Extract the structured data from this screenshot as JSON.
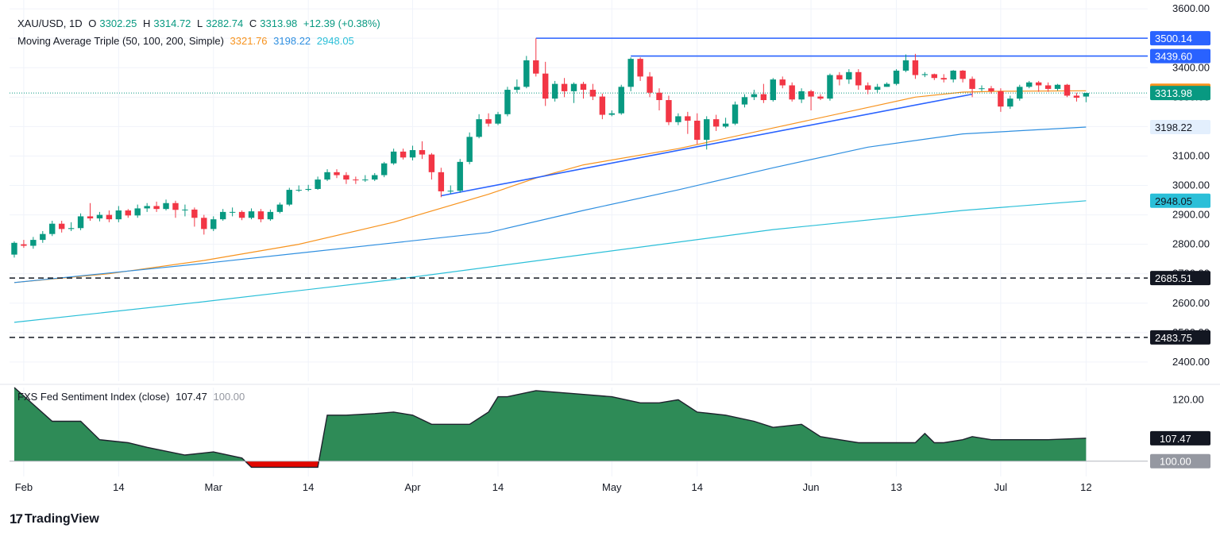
{
  "header": {
    "symbol": "XAU/USD, 1D",
    "open_label": "O",
    "open": "3302.25",
    "high_label": "H",
    "high": "3314.72",
    "low_label": "L",
    "low": "3282.74",
    "close_label": "C",
    "close": "3313.98",
    "change": "+12.39 (+0.38%)"
  },
  "ma_legend": {
    "name": "Moving Average Triple (50, 100, 200, Simple)",
    "ma50": "3321.76",
    "ma100": "3198.22",
    "ma200": "2948.05"
  },
  "indicator_legend": {
    "name": "FXS Fed Sentiment Index (close)",
    "value": "107.47",
    "baseline": "100.00"
  },
  "branding": {
    "logo_text": "TradingView"
  },
  "colors": {
    "up": "#089981",
    "down": "#f23645",
    "ma50": "#f7931e",
    "ma100": "#2f8fe0",
    "ma200": "#2bbfd8",
    "trendline": "#2962ff",
    "area_fill": "#2e8b57",
    "area_neg": "#e10600"
  },
  "chart_data": [
    {
      "type": "candlestick",
      "title": "XAU/USD, 1D",
      "ylim": [
        2335,
        3630
      ],
      "yticks": [
        3600,
        3500,
        3400,
        3300,
        3200,
        3100,
        3000,
        2900,
        2800,
        2700,
        2600,
        2500,
        2400
      ],
      "ytick_labels": [
        "3600.00",
        "3500.00",
        "3400.00",
        "3300.00",
        "3200.00",
        "3100.00",
        "3000.00",
        "2900.00",
        "2800.00",
        "2700.00",
        "2600.00",
        "2500.00",
        "2400.00"
      ],
      "xticks": [
        {
          "i": 1,
          "label": "Feb"
        },
        {
          "i": 11,
          "label": "14"
        },
        {
          "i": 21,
          "label": "Mar"
        },
        {
          "i": 31,
          "label": "14"
        },
        {
          "i": 42,
          "label": "Apr"
        },
        {
          "i": 51,
          "label": "14"
        },
        {
          "i": 63,
          "label": "May"
        },
        {
          "i": 72,
          "label": "14"
        },
        {
          "i": 84,
          "label": "Jun"
        },
        {
          "i": 93,
          "label": "13"
        },
        {
          "i": 104,
          "label": "Jul"
        },
        {
          "i": 113,
          "label": "12"
        }
      ],
      "slots": 120,
      "candles": [
        [
          2765,
          2805,
          2755,
          2810
        ],
        [
          2800,
          2795,
          2788,
          2815
        ],
        [
          2795,
          2815,
          2785,
          2825
        ],
        [
          2815,
          2835,
          2805,
          2845
        ],
        [
          2835,
          2870,
          2828,
          2880
        ],
        [
          2870,
          2852,
          2840,
          2880
        ],
        [
          2852,
          2855,
          2845,
          2875
        ],
        [
          2855,
          2895,
          2848,
          2905
        ],
        [
          2895,
          2888,
          2880,
          2940
        ],
        [
          2888,
          2900,
          2878,
          2910
        ],
        [
          2900,
          2885,
          2875,
          2915
        ],
        [
          2885,
          2915,
          2875,
          2930
        ],
        [
          2915,
          2898,
          2890,
          2920
        ],
        [
          2898,
          2922,
          2890,
          2935
        ],
        [
          2922,
          2930,
          2910,
          2940
        ],
        [
          2930,
          2920,
          2910,
          2945
        ],
        [
          2920,
          2940,
          2915,
          2952
        ],
        [
          2940,
          2917,
          2890,
          2948
        ],
        [
          2917,
          2918,
          2895,
          2935
        ],
        [
          2918,
          2890,
          2860,
          2925
        ],
        [
          2890,
          2852,
          2833,
          2900
        ],
        [
          2852,
          2885,
          2845,
          2895
        ],
        [
          2885,
          2910,
          2880,
          2920
        ],
        [
          2910,
          2910,
          2895,
          2925
        ],
        [
          2910,
          2890,
          2882,
          2915
        ],
        [
          2890,
          2912,
          2885,
          2922
        ],
        [
          2912,
          2885,
          2875,
          2920
        ],
        [
          2885,
          2910,
          2880,
          2918
        ],
        [
          2910,
          2935,
          2905,
          2942
        ],
        [
          2935,
          2985,
          2930,
          2992
        ],
        [
          2985,
          2985,
          2978,
          3000
        ],
        [
          2985,
          2988,
          2980,
          3002
        ],
        [
          2988,
          3020,
          2985,
          3030
        ],
        [
          3020,
          3045,
          3015,
          3055
        ],
        [
          3045,
          3035,
          3025,
          3055
        ],
        [
          3035,
          3020,
          3005,
          3045
        ],
        [
          3020,
          3018,
          3005,
          3030
        ],
        [
          3018,
          3020,
          3012,
          3035
        ],
        [
          3020,
          3035,
          3015,
          3042
        ],
        [
          3035,
          3075,
          3028,
          3080
        ],
        [
          3075,
          3115,
          3070,
          3125
        ],
        [
          3115,
          3095,
          3088,
          3125
        ],
        [
          3095,
          3120,
          3085,
          3135
        ],
        [
          3120,
          3105,
          3090,
          3150
        ],
        [
          3105,
          3045,
          3020,
          3110
        ],
        [
          3045,
          2980,
          2960,
          3060
        ],
        [
          2980,
          2982,
          2972,
          3000
        ],
        [
          2982,
          3080,
          2975,
          3090
        ],
        [
          3080,
          3165,
          3072,
          3180
        ],
        [
          3165,
          3225,
          3160,
          3242
        ],
        [
          3225,
          3210,
          3200,
          3245
        ],
        [
          3210,
          3242,
          3205,
          3250
        ],
        [
          3242,
          3325,
          3235,
          3335
        ],
        [
          3325,
          3335,
          3315,
          3360
        ],
        [
          3335,
          3425,
          3330,
          3440
        ],
        [
          3425,
          3380,
          3370,
          3500
        ],
        [
          3380,
          3295,
          3270,
          3420
        ],
        [
          3295,
          3345,
          3285,
          3355
        ],
        [
          3345,
          3320,
          3300,
          3365
        ],
        [
          3320,
          3345,
          3280,
          3350
        ],
        [
          3345,
          3325,
          3295,
          3352
        ],
        [
          3325,
          3302,
          3290,
          3345
        ],
        [
          3302,
          3240,
          3225,
          3312
        ],
        [
          3240,
          3245,
          3235,
          3255
        ],
        [
          3245,
          3335,
          3240,
          3342
        ],
        [
          3335,
          3430,
          3320,
          3435
        ],
        [
          3430,
          3370,
          3355,
          3435
        ],
        [
          3370,
          3315,
          3300,
          3385
        ],
        [
          3315,
          3290,
          3255,
          3330
        ],
        [
          3290,
          3215,
          3205,
          3305
        ],
        [
          3215,
          3235,
          3205,
          3245
        ],
        [
          3235,
          3220,
          3175,
          3250
        ],
        [
          3220,
          3155,
          3140,
          3245
        ],
        [
          3155,
          3225,
          3122,
          3235
        ],
        [
          3225,
          3200,
          3185,
          3240
        ],
        [
          3200,
          3210,
          3195,
          3230
        ],
        [
          3210,
          3275,
          3205,
          3285
        ],
        [
          3275,
          3300,
          3265,
          3310
        ],
        [
          3300,
          3310,
          3290,
          3325
        ],
        [
          3310,
          3290,
          3280,
          3345
        ],
        [
          3290,
          3360,
          3285,
          3365
        ],
        [
          3360,
          3340,
          3330,
          3370
        ],
        [
          3340,
          3292,
          3285,
          3350
        ],
        [
          3292,
          3320,
          3280,
          3330
        ],
        [
          3320,
          3302,
          3255,
          3325
        ],
        [
          3302,
          3295,
          3290,
          3310
        ],
        [
          3295,
          3375,
          3288,
          3380
        ],
        [
          3375,
          3360,
          3340,
          3385
        ],
        [
          3360,
          3385,
          3345,
          3395
        ],
        [
          3385,
          3340,
          3325,
          3395
        ],
        [
          3340,
          3325,
          3310,
          3350
        ],
        [
          3325,
          3335,
          3315,
          3345
        ],
        [
          3335,
          3345,
          3335,
          3350
        ],
        [
          3345,
          3390,
          3340,
          3395
        ],
        [
          3390,
          3425,
          3385,
          3445
        ],
        [
          3425,
          3375,
          3362,
          3447
        ],
        [
          3375,
          3378,
          3368,
          3385
        ],
        [
          3378,
          3365,
          3358,
          3380
        ],
        [
          3365,
          3360,
          3350,
          3378
        ],
        [
          3360,
          3390,
          3350,
          3392
        ],
        [
          3390,
          3362,
          3350,
          3392
        ],
        [
          3362,
          3328,
          3300,
          3370
        ],
        [
          3328,
          3330,
          3320,
          3340
        ],
        [
          3330,
          3320,
          3312,
          3338
        ],
        [
          3320,
          3268,
          3250,
          3330
        ],
        [
          3268,
          3295,
          3260,
          3305
        ],
        [
          3295,
          3335,
          3288,
          3342
        ],
        [
          3335,
          3350,
          3330,
          3355
        ],
        [
          3350,
          3340,
          3318,
          3355
        ],
        [
          3340,
          3328,
          3318,
          3350
        ],
        [
          3328,
          3342,
          3322,
          3345
        ],
        [
          3342,
          3305,
          3300,
          3345
        ],
        [
          3305,
          3298,
          3285,
          3315
        ],
        [
          3302,
          3313.98,
          3282.74,
          3314.72
        ]
      ],
      "series": [
        {
          "name": "50",
          "label": "3321.76",
          "y_at": [
            [
              0,
              2670
            ],
            [
              10,
              2700
            ],
            [
              20,
              2745
            ],
            [
              30,
              2800
            ],
            [
              40,
              2875
            ],
            [
              50,
              2970
            ],
            [
              55,
              3025
            ],
            [
              60,
              3070
            ],
            [
              70,
              3125
            ],
            [
              80,
              3195
            ],
            [
              90,
              3265
            ],
            [
              95,
              3300
            ],
            [
              100,
              3317
            ],
            [
              104,
              3320
            ],
            [
              113,
              3321.76
            ]
          ]
        },
        {
          "name": "100",
          "label": "3198.22",
          "y_at": [
            [
              0,
              2670
            ],
            [
              20,
              2735
            ],
            [
              40,
              2805
            ],
            [
              50,
              2840
            ],
            [
              60,
              2915
            ],
            [
              70,
              2985
            ],
            [
              80,
              3060
            ],
            [
              90,
              3130
            ],
            [
              100,
              3175
            ],
            [
              113,
              3198.22
            ]
          ]
        },
        {
          "name": "200",
          "label": "2948.05",
          "y_at": [
            [
              0,
              2535
            ],
            [
              20,
              2605
            ],
            [
              40,
              2680
            ],
            [
              60,
              2765
            ],
            [
              80,
              2850
            ],
            [
              100,
              2915
            ],
            [
              113,
              2948.05
            ]
          ]
        }
      ],
      "horizontal_lines": [
        {
          "value": 3500.14,
          "label": "3500.14",
          "from_i": 55,
          "style": "solid"
        },
        {
          "value": 3439.6,
          "label": "3439.60",
          "from_i": 65,
          "style": "solid"
        },
        {
          "value": 2685.51,
          "label": "2685.51",
          "from_i": 0,
          "style": "dashed"
        },
        {
          "value": 2483.75,
          "label": "2483.75",
          "from_i": 0,
          "style": "dashed"
        }
      ],
      "trendline": {
        "from": [
          45,
          2965
        ],
        "to": [
          101,
          3310
        ]
      },
      "price_line": {
        "value": 3313.98,
        "label": "3313.98"
      },
      "hidden_labels": [
        "3400.00",
        "2400.00"
      ]
    },
    {
      "type": "area",
      "title": "FXS Fed Sentiment Index (close)",
      "ylim": [
        95,
        124
      ],
      "yticks": [
        120
      ],
      "ytick_labels": [
        "120.00"
      ],
      "baseline": 100,
      "baseline_label": "100.00",
      "last_label": "107.47",
      "points": [
        [
          0,
          125
        ],
        [
          4,
          113
        ],
        [
          7,
          113
        ],
        [
          9,
          107
        ],
        [
          12,
          106
        ],
        [
          14,
          104.5
        ],
        [
          18,
          102
        ],
        [
          21,
          103
        ],
        [
          24,
          101
        ],
        [
          25,
          98
        ],
        [
          30,
          98
        ],
        [
          32,
          98
        ],
        [
          33,
          115
        ],
        [
          35,
          115
        ],
        [
          38,
          115.5
        ],
        [
          40,
          116
        ],
        [
          42,
          115
        ],
        [
          44,
          112
        ],
        [
          46,
          112
        ],
        [
          48,
          112
        ],
        [
          50,
          116
        ],
        [
          51,
          121
        ],
        [
          52,
          121
        ],
        [
          55,
          123
        ],
        [
          59,
          122
        ],
        [
          63,
          121
        ],
        [
          66,
          119
        ],
        [
          68,
          119
        ],
        [
          70,
          120
        ],
        [
          72,
          116
        ],
        [
          75,
          115
        ],
        [
          78,
          113
        ],
        [
          80,
          111
        ],
        [
          83,
          112
        ],
        [
          85,
          108
        ],
        [
          87,
          107
        ],
        [
          89,
          106
        ],
        [
          91,
          106
        ],
        [
          93,
          106
        ],
        [
          95,
          106
        ],
        [
          96,
          109
        ],
        [
          97,
          106
        ],
        [
          98,
          106
        ],
        [
          100,
          107
        ],
        [
          101,
          108
        ],
        [
          103,
          107
        ],
        [
          105,
          107
        ],
        [
          107,
          107
        ],
        [
          109,
          107
        ],
        [
          113,
          107.47
        ]
      ]
    }
  ]
}
